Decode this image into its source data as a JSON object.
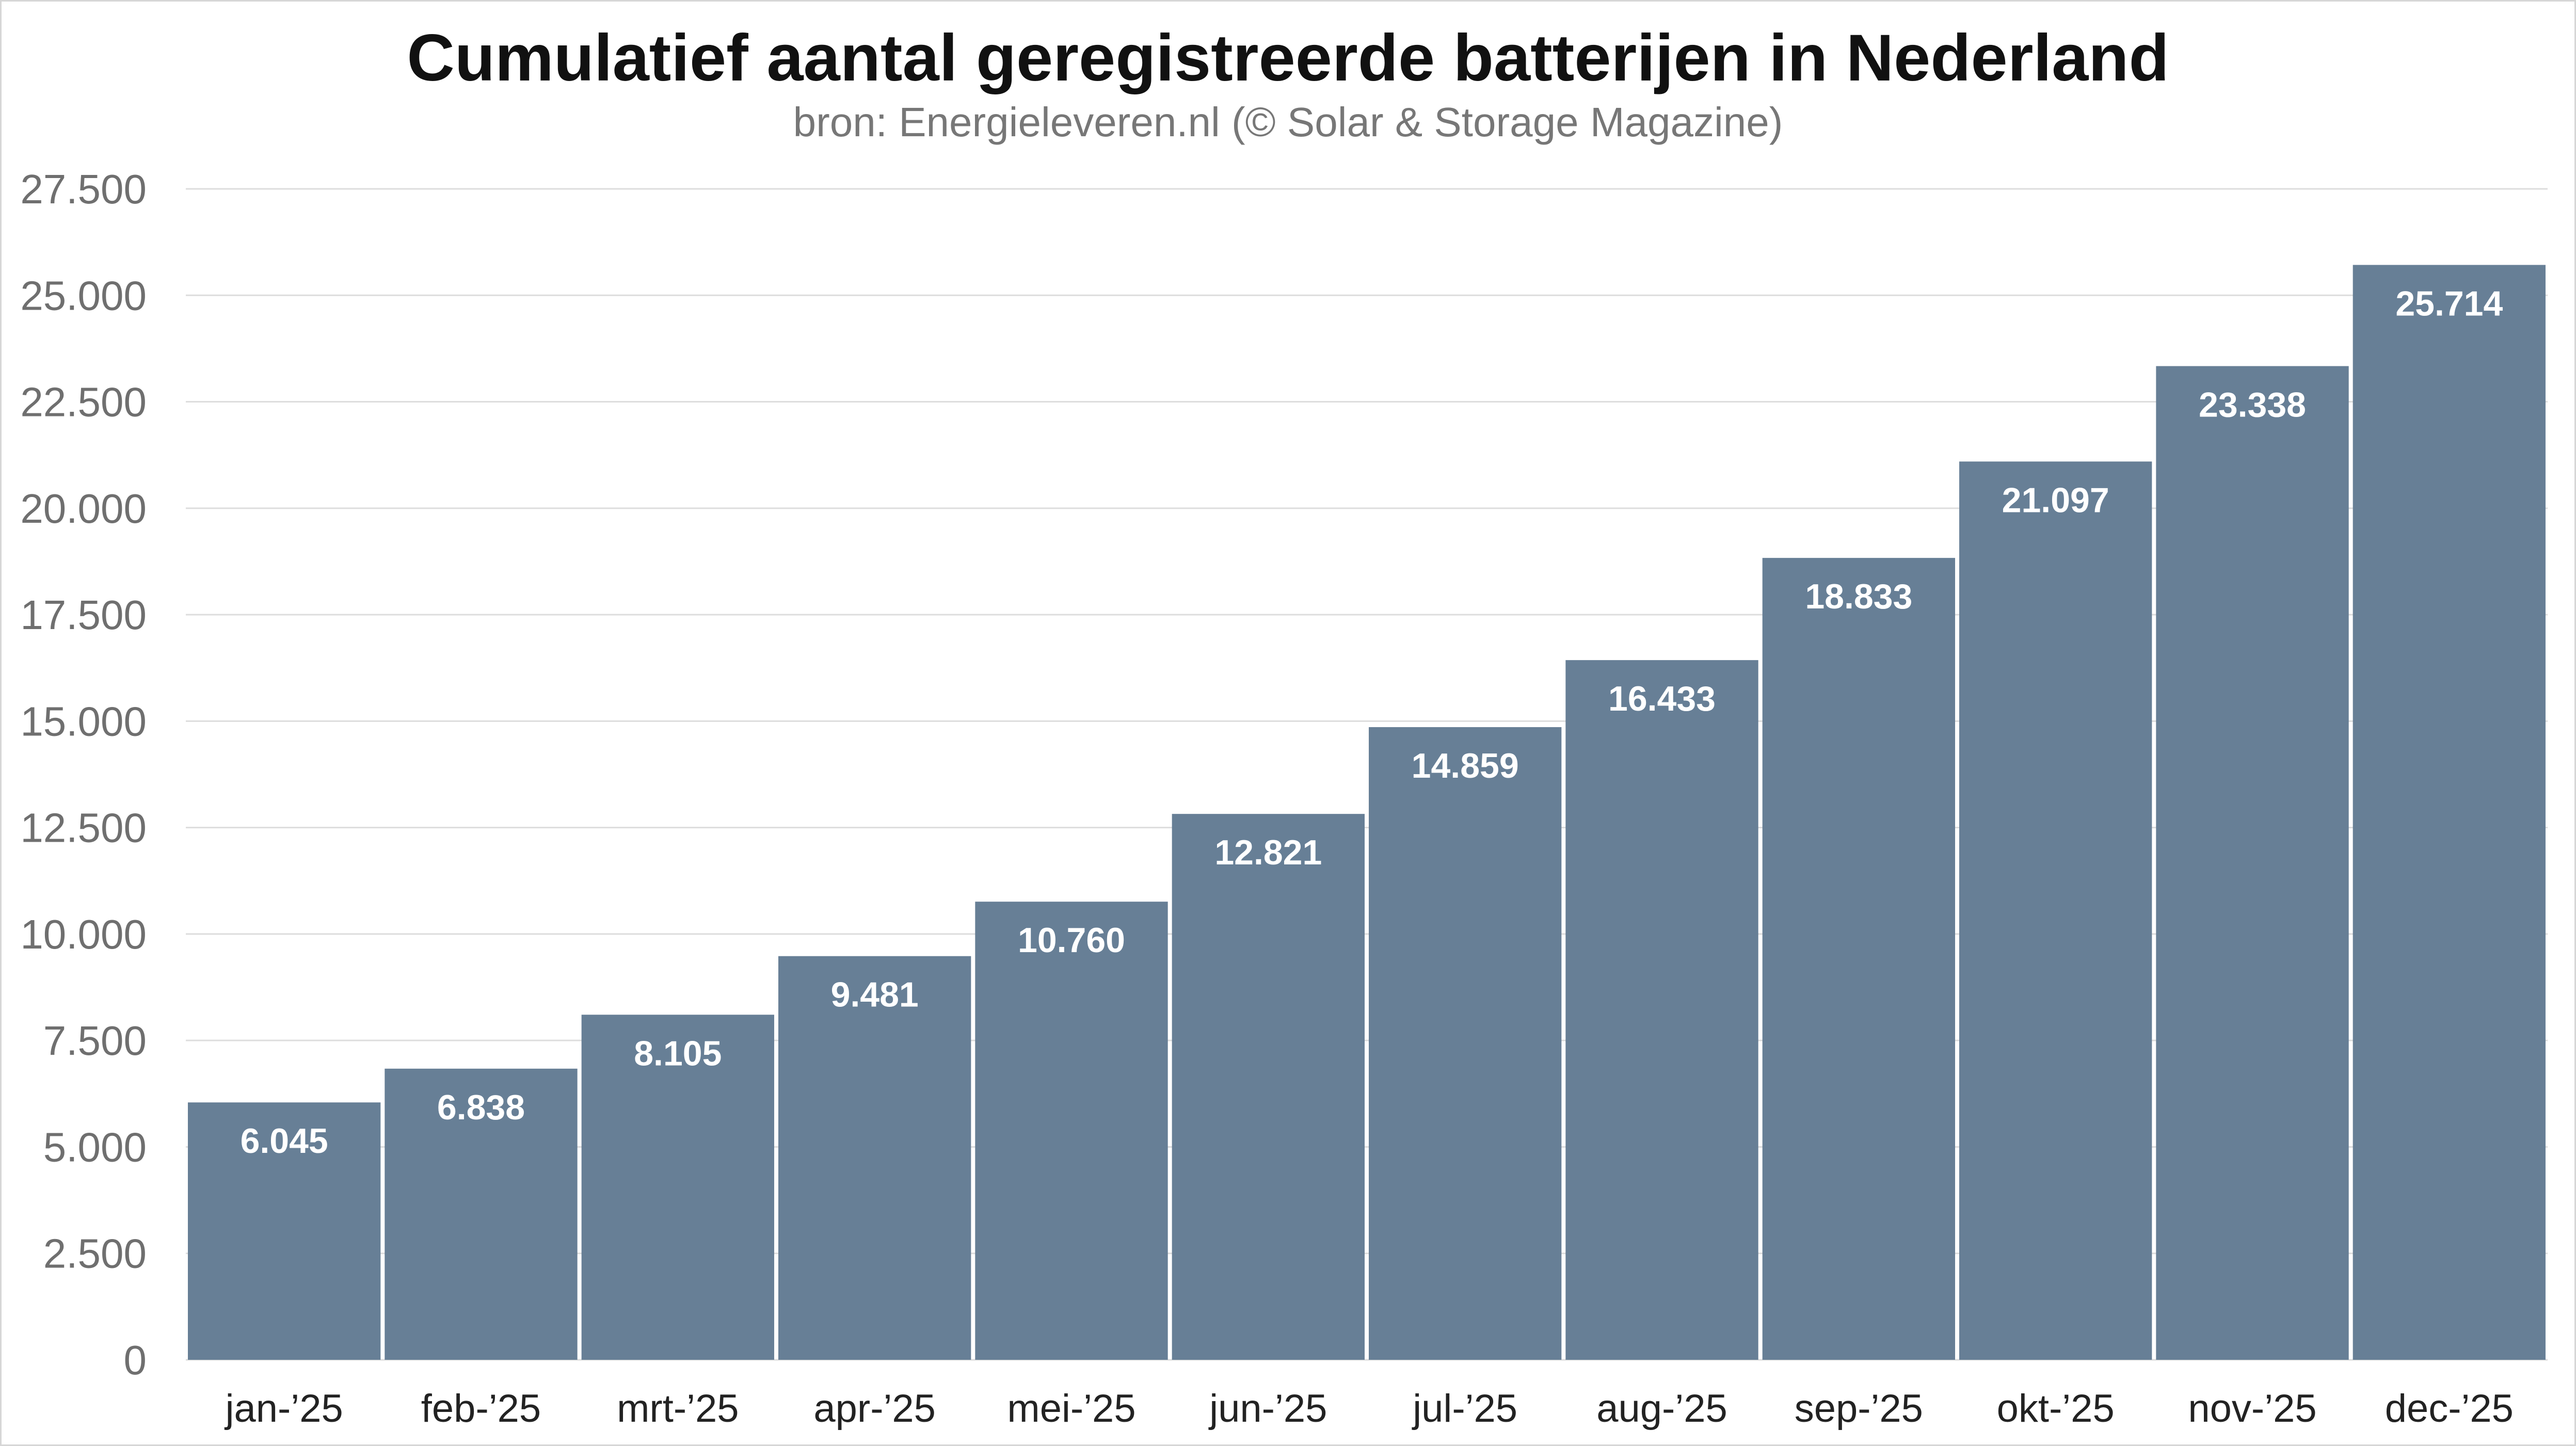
{
  "chart_data": {
    "type": "bar",
    "title": "Cumulatief aantal geregistreerde batterijen in Nederland",
    "subtitle": "bron: Energieleveren.nl (© Solar & Storage Magazine)",
    "categories": [
      "jan-’25",
      "feb-’25",
      "mrt-’25",
      "apr-’25",
      "mei-’25",
      "jun-’25",
      "jul-’25",
      "aug-’25",
      "sep-’25",
      "okt-’25",
      "nov-’25",
      "dec-’25"
    ],
    "values": [
      6045,
      6838,
      8105,
      9481,
      10760,
      12821,
      14859,
      16433,
      18833,
      21097,
      23338,
      25714
    ],
    "value_labels": [
      "6.045",
      "6.838",
      "8.105",
      "9.481",
      "10.760",
      "12.821",
      "14.859",
      "16.433",
      "18.833",
      "21.097",
      "23.338",
      "25.714"
    ],
    "yticks": [
      0,
      2500,
      5000,
      7500,
      10000,
      12500,
      15000,
      17500,
      20000,
      22500,
      25000,
      27500
    ],
    "ytick_labels": [
      "0",
      "2.500",
      "5.000",
      "7.500",
      "10.000",
      "12.500",
      "15.000",
      "17.500",
      "20.000",
      "22.500",
      "25.000",
      "27.500"
    ],
    "ylim": [
      0,
      27500
    ],
    "xlabel": "",
    "ylabel": "",
    "grid": true,
    "legend": "none",
    "colors": {
      "bar": "#677f96",
      "grid": "#dddddd",
      "axis_text": "#6f6f6f",
      "category_text": "#222222",
      "value_text": "#ffffff"
    }
  }
}
